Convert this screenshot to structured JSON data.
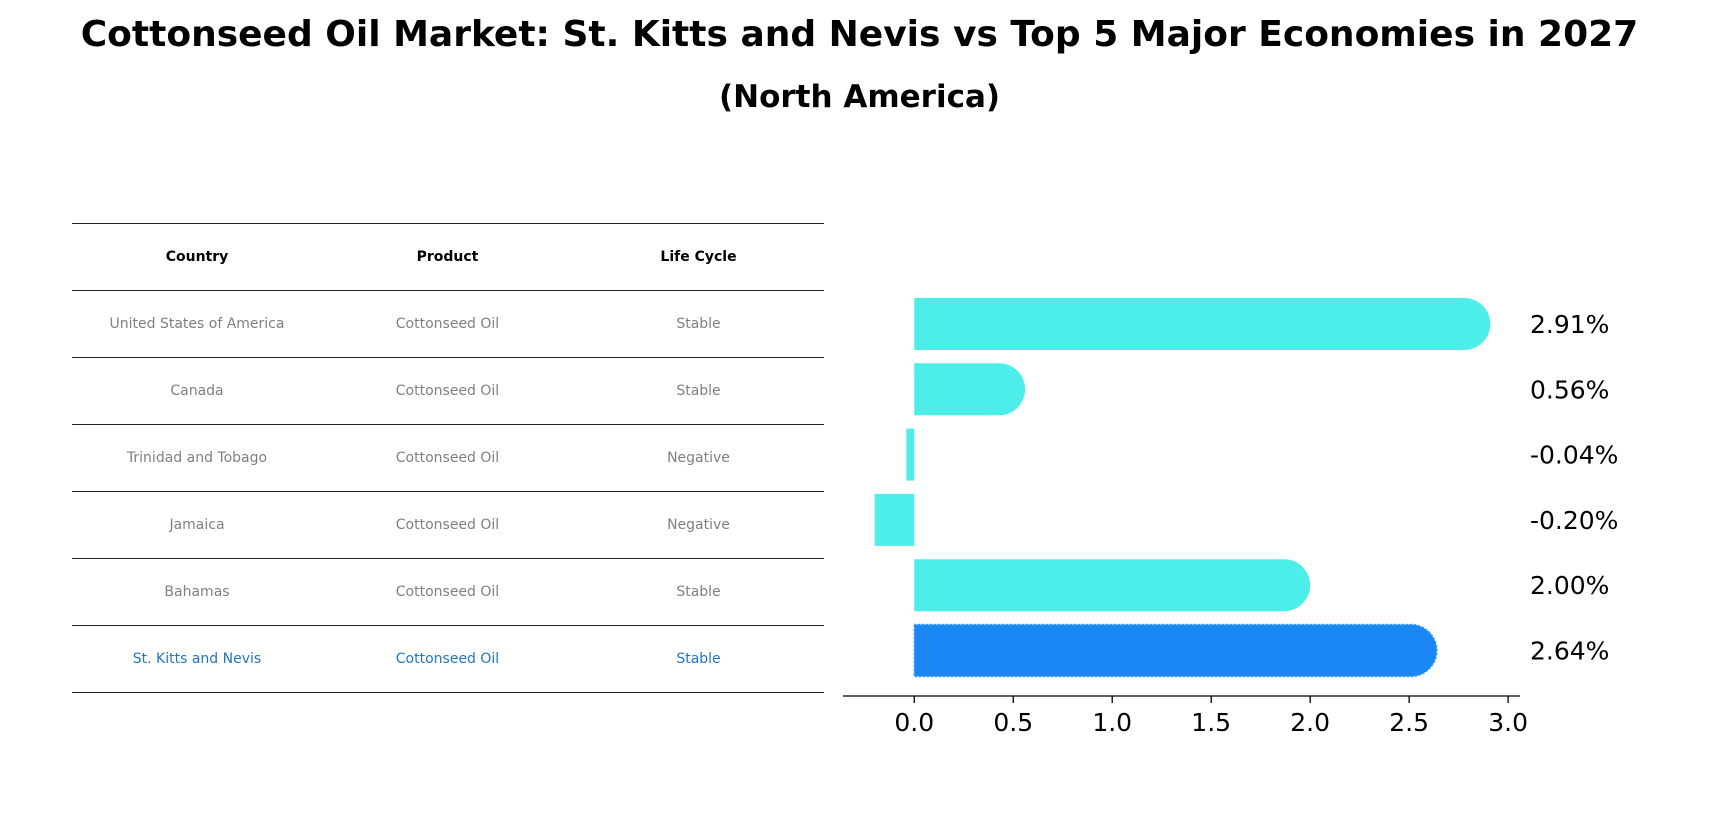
{
  "title": {
    "line1": "Cottonseed Oil Market: St. Kitts and Nevis vs Top 5 Major Economies in 2027",
    "line2": "(North America)"
  },
  "table": {
    "headers": [
      "Country",
      "Product",
      "Life Cycle"
    ],
    "rows": [
      [
        "United States of America",
        "Cottonseed Oil",
        "Stable"
      ],
      [
        "Canada",
        "Cottonseed Oil",
        "Stable"
      ],
      [
        "Trinidad and Tobago",
        "Cottonseed Oil",
        "Negative"
      ],
      [
        "Jamaica",
        "Cottonseed Oil",
        "Negative"
      ],
      [
        "Bahamas",
        "Cottonseed Oil",
        "Stable"
      ],
      [
        "St. Kitts and Nevis",
        "Cottonseed Oil",
        "Stable"
      ]
    ],
    "highlight_row": 5
  },
  "colors": {
    "bar": "#4deeea",
    "highlight_bar": "#1a87f5",
    "highlight_text": "#1f77c4",
    "muted_text": "#808080"
  },
  "chart_data": {
    "type": "bar",
    "orientation": "horizontal",
    "categories": [
      "United States of America",
      "Canada",
      "Trinidad and Tobago",
      "Jamaica",
      "Bahamas",
      "St. Kitts and Nevis"
    ],
    "values": [
      2.91,
      0.56,
      -0.04,
      -0.2,
      2.0,
      2.64
    ],
    "labels": [
      "2.91%",
      "0.56%",
      "-0.04%",
      "-0.20%",
      "2.00%",
      "2.64%"
    ],
    "highlight_index": 5,
    "xlim": [
      -0.36,
      3.06
    ],
    "xticks": [
      0.0,
      0.5,
      1.0,
      1.5,
      2.0,
      2.5,
      3.0
    ],
    "xtick_labels": [
      "0.0",
      "0.5",
      "1.0",
      "1.5",
      "2.0",
      "2.5",
      "3.0"
    ],
    "xlabel": "",
    "ylabel": ""
  }
}
